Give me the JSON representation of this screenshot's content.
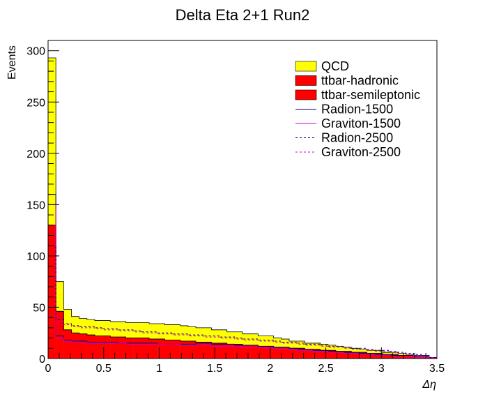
{
  "chart_data": {
    "type": "histogram",
    "title": "Delta Eta 2+1 Run2",
    "xlabel": "Δη",
    "ylabel": "Events",
    "xlim": [
      0,
      3.5
    ],
    "ylim": [
      0,
      310
    ],
    "xticks": [
      "0",
      "0.5",
      "1",
      "1.5",
      "2",
      "2.5",
      "3",
      "3.5"
    ],
    "yticks": [
      "0",
      "50",
      "100",
      "150",
      "200",
      "250",
      "300"
    ],
    "bin_width": 0.07,
    "stacked": [
      {
        "name": "ttbar-semileptonic",
        "color": "#ff0000",
        "values": [
          130,
          46,
          28,
          25,
          24,
          23,
          22,
          22,
          21,
          21,
          20,
          20,
          20,
          19,
          19,
          18,
          18,
          17,
          17,
          16,
          16,
          15,
          15,
          14,
          14,
          13,
          13,
          12,
          12,
          11,
          11,
          10,
          10,
          9,
          9,
          8,
          8,
          7,
          7,
          6,
          6,
          5,
          5,
          4,
          4,
          3,
          3,
          2,
          2,
          1
        ]
      },
      {
        "name": "ttbar-hadronic",
        "color": "#ff0000",
        "values": [
          0,
          0,
          0,
          0,
          0,
          0,
          0,
          0,
          0,
          0,
          0,
          0,
          0,
          0,
          0,
          0,
          0,
          0,
          0,
          0,
          0,
          0,
          0,
          0,
          0,
          0,
          0,
          0,
          0,
          0,
          0,
          0,
          0,
          0,
          0,
          0,
          0,
          0,
          0,
          0,
          0,
          0,
          0,
          0,
          0,
          0,
          0,
          0,
          0,
          0
        ]
      },
      {
        "name": "QCD",
        "color": "#ffff00",
        "values": [
          163,
          29,
          20,
          16,
          15,
          15,
          15,
          15,
          15,
          15,
          15,
          15,
          15,
          15,
          15,
          15,
          15,
          15,
          14,
          14,
          14,
          13,
          13,
          12,
          12,
          11,
          11,
          10,
          10,
          9,
          8,
          7,
          7,
          6,
          6,
          6,
          5,
          5,
          4,
          4,
          3,
          3,
          3,
          2,
          2,
          2,
          1,
          1,
          1,
          0
        ]
      }
    ],
    "overlays": [
      {
        "name": "Radion-1500",
        "color": "#00008b",
        "style": "solid",
        "values": [
          160,
          22,
          18,
          17,
          17,
          16,
          16,
          16,
          16,
          15,
          15,
          15,
          15,
          15,
          14,
          14,
          14,
          14,
          14,
          15,
          15,
          14,
          14,
          14,
          13,
          13,
          13,
          12,
          12,
          11,
          11,
          10,
          9,
          9,
          8,
          8,
          7,
          7,
          6,
          6,
          5,
          5,
          4,
          3,
          3,
          2,
          2,
          1,
          1,
          0
        ]
      },
      {
        "name": "Graviton-1500",
        "color": "#cc00cc",
        "style": "solid",
        "values": [
          150,
          20,
          17,
          16,
          16,
          15,
          15,
          15,
          15,
          15,
          14,
          14,
          14,
          14,
          14,
          14,
          14,
          13,
          13,
          13,
          13,
          12,
          12,
          12,
          12,
          11,
          11,
          11,
          10,
          10,
          9,
          9,
          8,
          8,
          7,
          7,
          6,
          6,
          5,
          5,
          4,
          4,
          3,
          3,
          2,
          2,
          2,
          1,
          1,
          0
        ]
      },
      {
        "name": "Radion-2500",
        "color": "#00008b",
        "style": "dashed",
        "values": [
          110,
          38,
          34,
          32,
          31,
          31,
          30,
          29,
          29,
          28,
          28,
          27,
          26,
          26,
          25,
          25,
          24,
          24,
          23,
          23,
          22,
          22,
          21,
          21,
          20,
          19,
          19,
          18,
          18,
          17,
          16,
          16,
          15,
          14,
          14,
          13,
          12,
          12,
          11,
          10,
          10,
          9,
          8,
          8,
          7,
          6,
          5,
          4,
          3,
          1
        ]
      },
      {
        "name": "Graviton-2500",
        "color": "#cc00cc",
        "style": "dashed",
        "values": [
          100,
          36,
          33,
          31,
          30,
          30,
          29,
          28,
          28,
          27,
          27,
          26,
          25,
          25,
          24,
          24,
          23,
          23,
          22,
          22,
          21,
          21,
          20,
          20,
          19,
          18,
          18,
          17,
          17,
          16,
          15,
          15,
          14,
          13,
          13,
          12,
          11,
          11,
          10,
          9,
          9,
          8,
          7,
          7,
          6,
          5,
          4,
          3,
          2,
          1
        ]
      }
    ],
    "legend": {
      "placement": "top-right",
      "entries": [
        {
          "label": "QCD",
          "kind": "fill",
          "color": "#ffff00"
        },
        {
          "label": "ttbar-hadronic",
          "kind": "fill",
          "color": "#ff0000"
        },
        {
          "label": "ttbar-semileptonic",
          "kind": "fill",
          "color": "#ff0000"
        },
        {
          "label": "Radion-1500",
          "kind": "line",
          "color": "#00008b",
          "style": "solid"
        },
        {
          "label": "Graviton-1500",
          "kind": "line",
          "color": "#cc00cc",
          "style": "solid"
        },
        {
          "label": "Radion-2500",
          "kind": "line",
          "color": "#00008b",
          "style": "dashed"
        },
        {
          "label": "Graviton-2500",
          "kind": "line",
          "color": "#cc00cc",
          "style": "dashed"
        }
      ]
    }
  }
}
